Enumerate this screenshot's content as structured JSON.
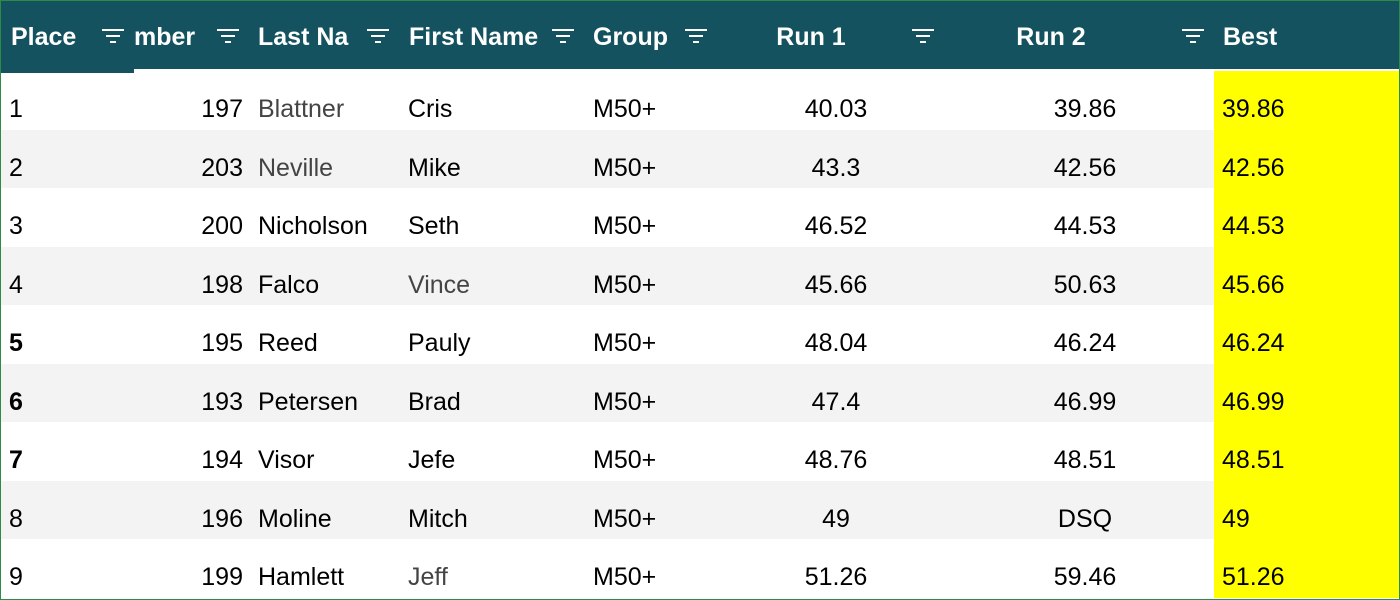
{
  "table": {
    "header": [
      "Place",
      "mber",
      "Last Na",
      "First Name",
      "Group",
      "Run 1",
      "Run 2",
      "Best"
    ],
    "rows": [
      [
        1,
        197,
        "Blattner",
        "Cris",
        "M50+",
        "40.03",
        "39.86",
        "39.86"
      ],
      [
        2,
        203,
        "Neville",
        "Mike",
        "M50+",
        "43.3",
        "42.56",
        "42.56"
      ],
      [
        3,
        200,
        "Nicholson",
        "Seth",
        "M50+",
        "46.52",
        "44.53",
        "44.53"
      ],
      [
        4,
        198,
        "Falco",
        "Vince",
        "M50+",
        "45.66",
        "50.63",
        "45.66"
      ],
      [
        5,
        195,
        "Reed",
        "Pauly",
        "M50+",
        "48.04",
        "46.24",
        "46.24"
      ],
      [
        6,
        193,
        "Petersen",
        "Brad",
        "M50+",
        "47.4",
        "46.99",
        "46.99"
      ],
      [
        7,
        194,
        "Visor",
        "Jefe",
        "M50+",
        "48.76",
        "48.51",
        "48.51"
      ],
      [
        8,
        196,
        "Moline",
        "Mitch",
        "M50+",
        "49",
        "DSQ",
        "49"
      ],
      [
        9,
        199,
        "Hamlett",
        "Jeff",
        "M50+",
        "51.26",
        "59.46",
        "51.26"
      ]
    ]
  }
}
